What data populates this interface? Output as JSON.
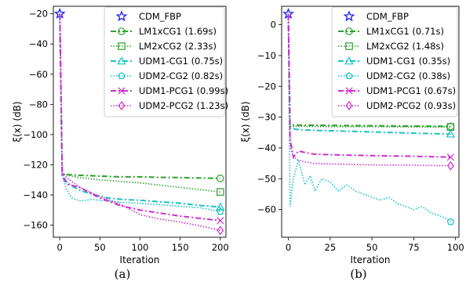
{
  "panel_labels": [
    "(a)",
    "(b)"
  ],
  "chart_data": [
    {
      "type": "line",
      "xlabel": "Iteration",
      "ylabel": "ξ(x) (dB)",
      "xlim": [
        -8,
        207
      ],
      "ylim": [
        -168,
        -15
      ],
      "xticks": [
        0,
        50,
        100,
        150,
        200
      ],
      "yticks": [
        -20,
        -40,
        -60,
        -80,
        -100,
        -120,
        -140,
        -160
      ],
      "legend_position": "top-right",
      "series": [
        {
          "name": "CDM_FBP",
          "color": "#1a1aff",
          "style": "star",
          "x": [
            0
          ],
          "y": [
            -20
          ]
        },
        {
          "name": "LM1xCG1 (1.69s)",
          "color": "#2ca02c",
          "style": "dashdot",
          "marker": "circle",
          "x": [
            0,
            3,
            10,
            25,
            50,
            75,
            100,
            125,
            150,
            175,
            200
          ],
          "y": [
            -20,
            -126,
            -126.5,
            -127,
            -127.5,
            -128,
            -128,
            -128.3,
            -128.5,
            -128.8,
            -129
          ]
        },
        {
          "name": "LM2xCG2 (2.33s)",
          "color": "#2ca02c",
          "style": "dotted",
          "marker": "square",
          "x": [
            0,
            3,
            10,
            25,
            50,
            75,
            100,
            125,
            150,
            175,
            200
          ],
          "y": [
            -20,
            -126,
            -127,
            -128.5,
            -130,
            -131,
            -132,
            -133.5,
            -135,
            -136.5,
            -138
          ]
        },
        {
          "name": "UDM1-CG1 (0.75s)",
          "color": "#17c3c3",
          "style": "dashdot",
          "marker": "triangle",
          "x": [
            0,
            3,
            8,
            15,
            25,
            40,
            60,
            80,
            100,
            125,
            150,
            175,
            200
          ],
          "y": [
            -20,
            -126,
            -131,
            -134,
            -137,
            -139.5,
            -142,
            -143,
            -143.5,
            -144.5,
            -145.5,
            -147,
            -148
          ]
        },
        {
          "name": "UDM2-CG2 (0.82s)",
          "color": "#17c3c3",
          "style": "dotted",
          "marker": "pentagon",
          "x": [
            0,
            3,
            8,
            15,
            25,
            40,
            60,
            80,
            100,
            125,
            150,
            175,
            200
          ],
          "y": [
            -20,
            -127,
            -136,
            -142,
            -144,
            -143,
            -144,
            -145,
            -145.5,
            -146.5,
            -147.5,
            -148.5,
            -151
          ]
        },
        {
          "name": "UDM1-PCG1 (0.99s)",
          "color": "#cc2ecc",
          "style": "dashdot",
          "marker": "x",
          "x": [
            0,
            3,
            10,
            25,
            50,
            75,
            100,
            125,
            150,
            175,
            200
          ],
          "y": [
            -20,
            -128,
            -133,
            -135,
            -142,
            -147,
            -150,
            -152,
            -154,
            -155.5,
            -157
          ]
        },
        {
          "name": "UDM2-PCG2 (1.23s)",
          "color": "#cc2ecc",
          "style": "dotted",
          "marker": "diamond",
          "x": [
            0,
            3,
            10,
            25,
            50,
            75,
            100,
            125,
            150,
            175,
            200
          ],
          "y": [
            -20,
            -126,
            -129,
            -135,
            -141,
            -146,
            -153,
            -156,
            -158,
            -160.5,
            -163.5
          ]
        }
      ]
    },
    {
      "type": "line",
      "xlabel": "Iteration",
      "ylabel": "ξ(x) (dB)",
      "xlim": [
        -4,
        102
      ],
      "ylim": [
        -69,
        6
      ],
      "xticks": [
        0,
        25,
        50,
        75,
        100
      ],
      "yticks": [
        0,
        -10,
        -20,
        -30,
        -40,
        -50,
        -60
      ],
      "legend_position": "top-right",
      "series": [
        {
          "name": "CDM_FBP",
          "color": "#1a1aff",
          "style": "star",
          "x": [
            0
          ],
          "y": [
            3.5
          ]
        },
        {
          "name": "LM1xCG1 (0.71s)",
          "color": "#2ca02c",
          "style": "dashdot",
          "marker": "circle",
          "x": [
            0,
            1,
            5,
            25,
            50,
            75,
            97
          ],
          "y": [
            3.5,
            -32.5,
            -32.6,
            -32.7,
            -32.8,
            -32.9,
            -33
          ]
        },
        {
          "name": "LM2xCG2 (1.48s)",
          "color": "#2ca02c",
          "style": "dotted",
          "marker": "square",
          "x": [
            0,
            1,
            5,
            25,
            50,
            75,
            97
          ],
          "y": [
            3.5,
            -33,
            -33,
            -33.1,
            -33.1,
            -33.2,
            -33.2
          ]
        },
        {
          "name": "UDM1-CG1 (0.35s)",
          "color": "#17c3c3",
          "style": "dashdot",
          "marker": "triangle",
          "x": [
            0,
            1,
            5,
            15,
            30,
            50,
            75,
            97
          ],
          "y": [
            3.5,
            -33.5,
            -34,
            -34.3,
            -34.5,
            -34.8,
            -35.2,
            -35.5
          ]
        },
        {
          "name": "UDM2-CG2 (0.38s)",
          "color": "#17c3c3",
          "style": "dotted",
          "marker": "pentagon",
          "x": [
            0,
            1,
            3,
            6,
            10,
            13,
            16,
            20,
            25,
            30,
            35,
            40,
            45,
            50,
            55,
            60,
            65,
            70,
            75,
            80,
            85,
            90,
            95,
            97
          ],
          "y": [
            3.5,
            -59,
            -50,
            -44,
            -52,
            -49,
            -54,
            -50,
            -51,
            -54,
            -52,
            -54,
            -55,
            -56,
            -57,
            -56,
            -58,
            -59,
            -60,
            -59,
            -61,
            -62,
            -63,
            -64
          ]
        },
        {
          "name": "UDM1-PCG1 (0.67s)",
          "color": "#cc2ecc",
          "style": "dashdot",
          "marker": "x",
          "x": [
            0,
            1,
            3,
            6,
            10,
            15,
            25,
            50,
            75,
            97
          ],
          "y": [
            3.5,
            -37,
            -43,
            -41,
            -41.5,
            -42,
            -42.2,
            -42.5,
            -42.7,
            -43
          ]
        },
        {
          "name": "UDM2-PCG2 (0.93s)",
          "color": "#cc2ecc",
          "style": "dotted",
          "marker": "diamond",
          "x": [
            0,
            1,
            3,
            6,
            10,
            15,
            25,
            50,
            75,
            97
          ],
          "y": [
            3.5,
            -39,
            -43,
            -44,
            -44.5,
            -45,
            -45.2,
            -45.5,
            -45.6,
            -45.8
          ]
        }
      ]
    }
  ]
}
